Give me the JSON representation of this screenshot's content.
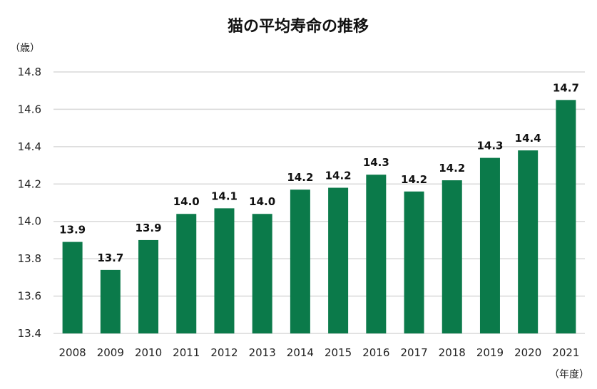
{
  "chart_data": {
    "type": "bar",
    "title": "猫の平均寿命の推移",
    "ylabel": "（歳）",
    "xlabel": "（年度）",
    "ylim": [
      13.4,
      14.8
    ],
    "yticks": [
      "13.4",
      "13.6",
      "13.8",
      "14.0",
      "14.2",
      "14.4",
      "14.6",
      "14.8"
    ],
    "grid": true,
    "bar_color": "#0b7a4a",
    "categories": [
      "2008",
      "2009",
      "2010",
      "2011",
      "2012",
      "2013",
      "2014",
      "2015",
      "2016",
      "2017",
      "2018",
      "2019",
      "2020",
      "2021"
    ],
    "values": [
      13.89,
      13.74,
      13.9,
      14.04,
      14.07,
      14.04,
      14.17,
      14.18,
      14.25,
      14.16,
      14.22,
      14.34,
      14.38,
      14.65
    ],
    "data_labels": [
      "13.9",
      "13.7",
      "13.9",
      "14.0",
      "14.1",
      "14.0",
      "14.2",
      "14.2",
      "14.3",
      "14.2",
      "14.2",
      "14.3",
      "14.4",
      "14.7"
    ]
  }
}
